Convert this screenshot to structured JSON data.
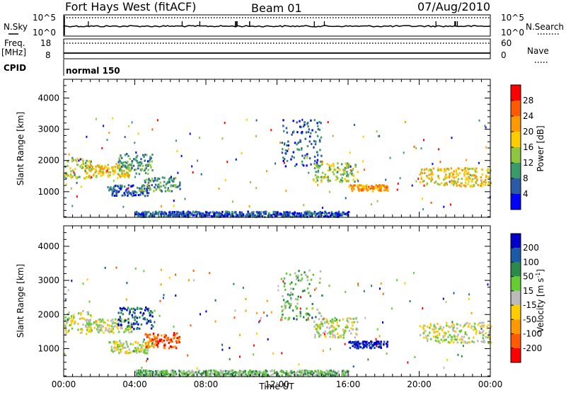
{
  "header": {
    "station": "Fort Hays West (fitACF)",
    "beam": "Beam 01",
    "date": "07/Aug/2010"
  },
  "status_panels": {
    "nsky": {
      "label": "N.Sky",
      "ticks": [
        "10^5",
        "10^0"
      ]
    },
    "nsearch": {
      "label": "N.Search",
      "ticks": [
        "10^5",
        "10^0"
      ]
    },
    "freq": {
      "label": "Freq.",
      "unit": "[MHz]",
      "ticks": [
        "18",
        "8"
      ]
    },
    "nave": {
      "label": "Nave",
      "ticks": [
        "60",
        "0"
      ]
    },
    "cpid": {
      "label": "CPID",
      "value": "normal 150"
    }
  },
  "chart_data": [
    {
      "type": "scatter",
      "panel": "power",
      "title": "",
      "xlabel": "",
      "ylabel": "Slant Range [km]",
      "xlim": [
        0,
        24
      ],
      "ylim": [
        180,
        4600
      ],
      "yticks": [
        "4000",
        "3000",
        "2000",
        "1000"
      ],
      "legend": "right colorbar",
      "colorbar": {
        "label": "Power [dB]",
        "ticks": [
          "28",
          "24",
          "20",
          "16",
          "12",
          "8",
          "4"
        ],
        "colors": [
          "#ff0000",
          "#ff5a00",
          "#ff9900",
          "#ffcc00",
          "#8fc640",
          "#3a9a6a",
          "#2a5aa8",
          "#0000ff"
        ]
      },
      "echo_regions": [
        {
          "t": [
            0.0,
            1.5
          ],
          "range": [
            1400,
            2100
          ],
          "color_index": 4
        },
        {
          "t": [
            1.2,
            3.8
          ],
          "range": [
            1450,
            1850
          ],
          "color_index": 3
        },
        {
          "t": [
            3.0,
            5.0
          ],
          "range": [
            1550,
            2200
          ],
          "color_index": 5
        },
        {
          "t": [
            2.5,
            4.8
          ],
          "range": [
            850,
            1200
          ],
          "color_index": 6
        },
        {
          "t": [
            4.5,
            6.5
          ],
          "range": [
            1000,
            1450
          ],
          "color_index": 5
        },
        {
          "t": [
            12.2,
            14.5
          ],
          "range": [
            1800,
            3300
          ],
          "color_index": 6
        },
        {
          "t": [
            14.0,
            16.5
          ],
          "range": [
            1300,
            1900
          ],
          "color_index": 4
        },
        {
          "t": [
            16.0,
            18.2
          ],
          "range": [
            1000,
            1200
          ],
          "color_index": 2
        },
        {
          "t": [
            20.0,
            24.0
          ],
          "range": [
            1150,
            1750
          ],
          "color_index": 3
        },
        {
          "t": [
            4.0,
            16.0
          ],
          "range": [
            180,
            350
          ],
          "color_index": 6
        }
      ]
    },
    {
      "type": "scatter",
      "panel": "velocity",
      "title": "",
      "xlabel": "Time UT",
      "ylabel": "Slant Range [km]",
      "xlim": [
        0,
        24
      ],
      "ylim": [
        180,
        4600
      ],
      "yticks": [
        "4000",
        "3000",
        "2000",
        "1000"
      ],
      "xticks": [
        "00:00",
        "04:00",
        "08:00",
        "12:00",
        "16:00",
        "20:00",
        "00:00"
      ],
      "legend": "right colorbar",
      "colorbar": {
        "label": "Velocity [m s",
        "label_sup": "-1",
        "label_end": "]",
        "ticks": [
          "200",
          "100",
          "50",
          "15",
          "-15",
          "-50",
          "-100",
          "-200"
        ],
        "colors": [
          "#0000c8",
          "#1a5aa8",
          "#2a8a4a",
          "#66cc33",
          "#bbbbbb",
          "#ffcc00",
          "#ff9900",
          "#ff5a00",
          "#ff0000"
        ]
      },
      "echo_regions": [
        {
          "t": [
            0.0,
            1.5
          ],
          "range": [
            1400,
            2100
          ],
          "color_index": 4
        },
        {
          "t": [
            1.2,
            3.8
          ],
          "range": [
            1450,
            1850
          ],
          "color_index": 4
        },
        {
          "t": [
            3.0,
            5.0
          ],
          "range": [
            1550,
            2200
          ],
          "color_index": 1
        },
        {
          "t": [
            2.5,
            4.8
          ],
          "range": [
            850,
            1200
          ],
          "color_index": 4
        },
        {
          "t": [
            4.5,
            6.5
          ],
          "range": [
            1000,
            1450
          ],
          "color_index": 7
        },
        {
          "t": [
            12.2,
            14.5
          ],
          "range": [
            1800,
            3300
          ],
          "color_index": 3
        },
        {
          "t": [
            14.0,
            16.5
          ],
          "range": [
            1300,
            1900
          ],
          "color_index": 4
        },
        {
          "t": [
            16.0,
            18.2
          ],
          "range": [
            1000,
            1200
          ],
          "color_index": 0
        },
        {
          "t": [
            20.0,
            24.0
          ],
          "range": [
            1150,
            1750
          ],
          "color_index": 4
        },
        {
          "t": [
            4.0,
            16.0
          ],
          "range": [
            180,
            350
          ],
          "color_index": 3
        }
      ]
    }
  ]
}
